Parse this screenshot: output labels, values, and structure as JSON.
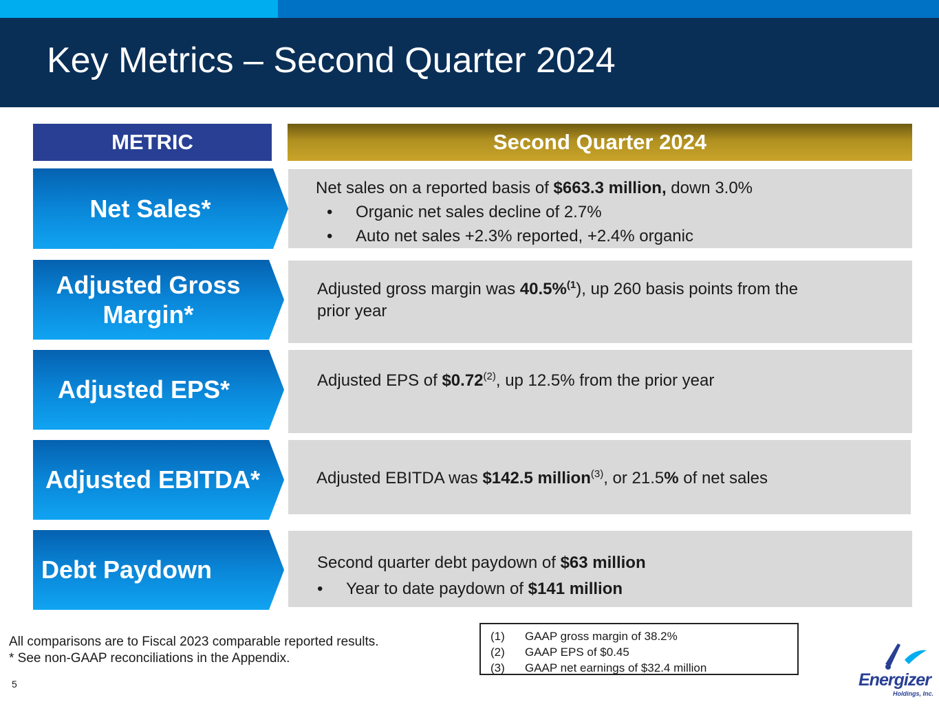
{
  "title": "Key Metrics – Second Quarter 2024",
  "columns": {
    "metric": "METRIC",
    "quarter": "Second Quarter 2024"
  },
  "rows": [
    {
      "metric": "Net Sales*",
      "main_pre": "Net sales on a reported basis of ",
      "main_bold": "$663.3 million,",
      "main_post": " down 3.0%",
      "bullets": [
        "Organic net sales decline of 2.7%",
        "Auto net sales +2.3% reported, +2.4% organic"
      ]
    },
    {
      "metric_line1": "Adjusted Gross",
      "metric_line2": "Margin*",
      "main_pre": "Adjusted gross margin was ",
      "main_bold": "40.5%",
      "main_sup": "(1",
      "main_post": "), up 260 basis points from the",
      "main_line2": "prior year"
    },
    {
      "metric": "Adjusted EPS*",
      "main_pre": "Adjusted EPS of ",
      "main_bold": "$0.72",
      "main_sup": "(2)",
      "main_post": ", up 12.5% from the prior year"
    },
    {
      "metric": "Adjusted EBITDA*",
      "main_pre": "Adjusted EBITDA was ",
      "main_bold": "$142.5 million",
      "main_sup": "(3)",
      "main_mid": ", or 21.5",
      "main_bold2": "%",
      "main_post": " of net sales"
    },
    {
      "metric": "Debt Paydown",
      "main_pre": "Second quarter debt paydown of ",
      "main_bold": "$63 million",
      "bullet_pre": "Year to date paydown of ",
      "bullet_bold": "$141 million"
    }
  ],
  "bullet_char": "•",
  "notes": [
    "All comparisons are to Fiscal 2023 comparable reported results.",
    "* See non-GAAP reconciliations in the Appendix."
  ],
  "footnotes": [
    {
      "num": "(1)",
      "text": "GAAP gross margin of 38.2%"
    },
    {
      "num": "(2)",
      "text": "GAAP EPS of $0.45"
    },
    {
      "num": "(3)",
      "text": "GAAP net earnings of $32.4 million"
    }
  ],
  "page_number": "5",
  "logo": {
    "name": "Energizer",
    "sub": "Holdings, Inc."
  },
  "colors": {
    "header": "#0a2f57",
    "accent_blue": "#00aeef",
    "metric_head": "#283f94",
    "gold": "#b09020",
    "panel": "#d9d9d9"
  }
}
